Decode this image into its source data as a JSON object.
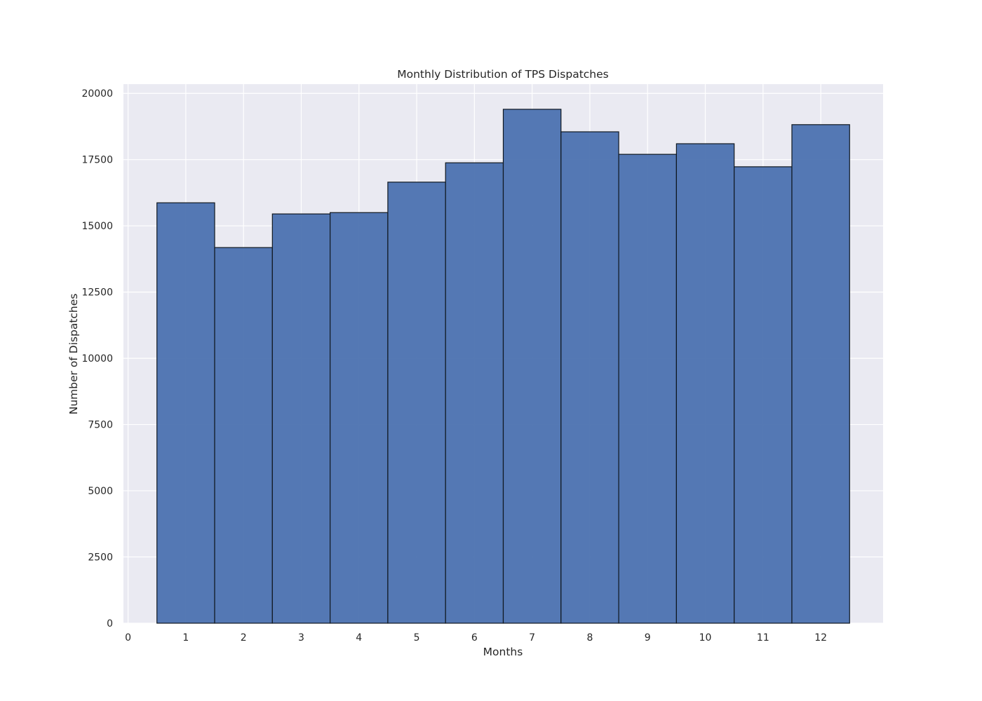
{
  "colors": {
    "plot_background": "#eaeaf2",
    "grid": "#ffffff",
    "bar_fill": "#4c72b0",
    "bar_edge": "#101820",
    "text": "#262626"
  },
  "chart_data": {
    "type": "bar",
    "title": "Monthly Distribution of TPS Dispatches",
    "xlabel": "Months",
    "ylabel": "Number of Dispatches",
    "categories": [
      "1",
      "2",
      "3",
      "4",
      "5",
      "6",
      "7",
      "8",
      "9",
      "10",
      "11",
      "12"
    ],
    "x": [
      1,
      2,
      3,
      4,
      5,
      6,
      7,
      8,
      9,
      10,
      11,
      12
    ],
    "values": [
      15870,
      14180,
      15450,
      15500,
      16650,
      17380,
      19400,
      18550,
      17700,
      18100,
      17230,
      18820
    ],
    "bar_width": 1,
    "xlim": [
      -0.08,
      13.08
    ],
    "ylim": [
      0,
      20350
    ],
    "xticks": [
      0,
      1,
      2,
      3,
      4,
      5,
      6,
      7,
      8,
      9,
      10,
      11,
      12
    ],
    "xtick_labels": [
      "0",
      "1",
      "2",
      "3",
      "4",
      "5",
      "6",
      "7",
      "8",
      "9",
      "10",
      "11",
      "12"
    ],
    "yticks": [
      0,
      2500,
      5000,
      7500,
      10000,
      12500,
      15000,
      17500,
      20000
    ],
    "ytick_labels": [
      "0",
      "2500",
      "5000",
      "7500",
      "10000",
      "12500",
      "15000",
      "17500",
      "20000"
    ],
    "grid": true,
    "legend": "none"
  }
}
